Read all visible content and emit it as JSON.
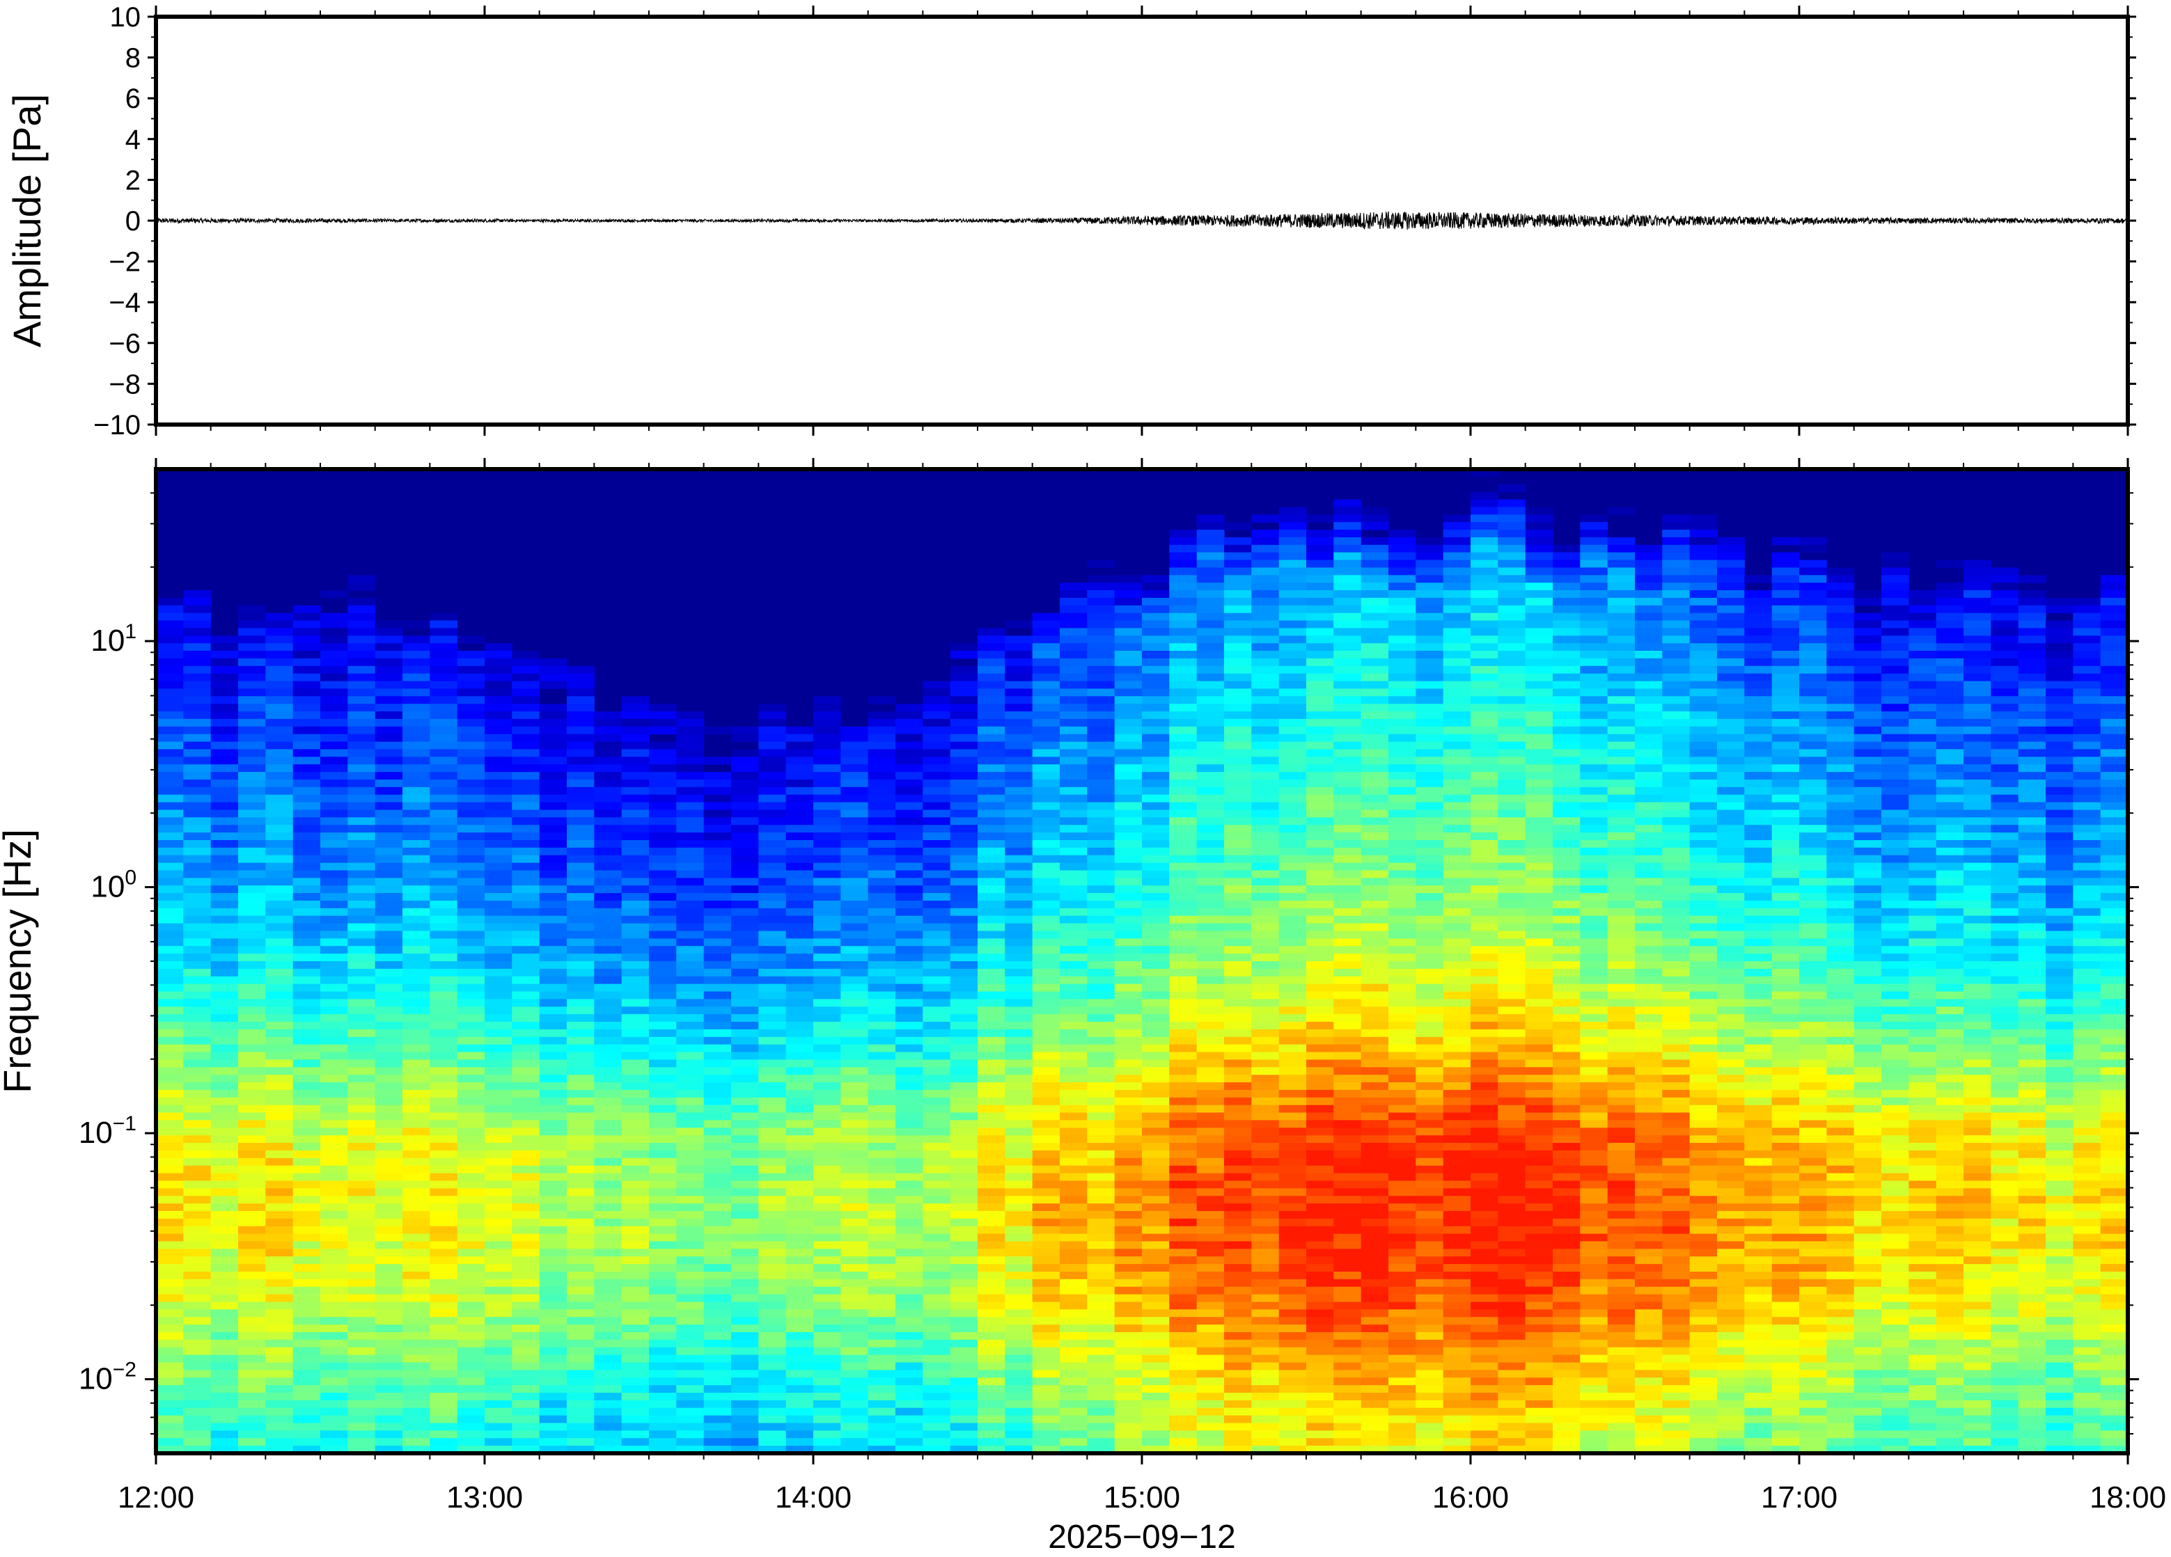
{
  "chart_data": [
    {
      "type": "line",
      "title": "",
      "xlabel": "",
      "ylabel": "Amplitude [Pa]",
      "ylim": [
        -10,
        10
      ],
      "yticks": [
        "10",
        "8",
        "6",
        "4",
        "2",
        "0",
        "−2",
        "−4",
        "−6",
        "−8",
        "−10"
      ],
      "ytick_values": [
        10,
        8,
        6,
        4,
        2,
        0,
        -2,
        -4,
        -6,
        -8,
        -10
      ],
      "xlim": [
        "12:00",
        "18:00"
      ],
      "grid": false,
      "series": [
        {
          "description_values": "waveform envelope (peak amplitude, Pa) sampled every 15 minutes",
          "x": [
            "12:00",
            "12:15",
            "12:30",
            "12:45",
            "13:00",
            "13:15",
            "13:30",
            "13:45",
            "14:00",
            "14:15",
            "14:30",
            "14:45",
            "15:00",
            "15:15",
            "15:30",
            "15:45",
            "16:00",
            "16:15",
            "16:30",
            "16:45",
            "17:00",
            "17:15",
            "17:30",
            "17:45",
            "18:00"
          ],
          "values": [
            0.12,
            0.1,
            0.1,
            0.08,
            0.08,
            0.07,
            0.07,
            0.07,
            0.07,
            0.07,
            0.08,
            0.12,
            0.22,
            0.28,
            0.35,
            0.45,
            0.4,
            0.32,
            0.28,
            0.22,
            0.18,
            0.15,
            0.13,
            0.12,
            0.12
          ]
        }
      ]
    },
    {
      "type": "heatmap",
      "title": "",
      "xlabel": "2025−09−12",
      "ylabel": "Frequency [Hz]",
      "yscale": "log",
      "ylim": [
        0.005,
        50
      ],
      "ytick_labels": [
        {
          "base": "10",
          "exp": "1",
          "value": 10
        },
        {
          "base": "10",
          "exp": "0",
          "value": 1
        },
        {
          "base": "10",
          "exp": "−1",
          "value": 0.1
        },
        {
          "base": "10",
          "exp": "−2",
          "value": 0.01
        }
      ],
      "xticks": [
        "12:00",
        "13:00",
        "14:00",
        "15:00",
        "16:00",
        "17:00",
        "18:00"
      ],
      "colormap": "jet",
      "colorbar": false,
      "grid": false
    }
  ]
}
